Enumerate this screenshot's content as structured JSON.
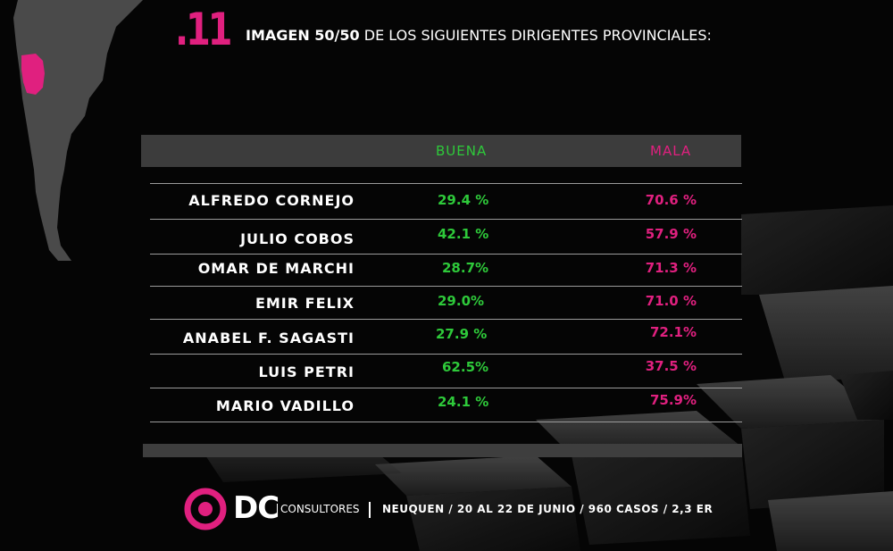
{
  "header": {
    "slide_number": ".11",
    "title_bold": "IMAGEN 50/50",
    "title_rest": "DE LOS SIGUIENTES DIRIGENTES PROVINCIALES:"
  },
  "table": {
    "columns": [
      "BUENA",
      "MALA"
    ],
    "rows": [
      {
        "name": "ALFREDO CORNEJO",
        "buena": "29.4 %",
        "mala": "70.6 %"
      },
      {
        "name": "JULIO COBOS",
        "buena": "42.1 %",
        "mala": "57.9 %"
      },
      {
        "name": "OMAR DE MARCHI",
        "buena": "28.7%",
        "mala": "71.3 %"
      },
      {
        "name": "EMIR FELIX",
        "buena": "29.0%",
        "mala": "71.0 %"
      },
      {
        "name": "ANABEL F. SAGASTI",
        "buena": "27.9 %",
        "mala": "72.1%"
      },
      {
        "name": "LUIS PETRI",
        "buena": "62.5%",
        "mala": "37.5 %"
      },
      {
        "name": "MARIO VADILLO",
        "buena": "24.1 %",
        "mala": "75.9%"
      }
    ]
  },
  "footer": {
    "logo": "DC",
    "logo_subtitle": "CONSULTORES",
    "info": "NEUQUEN / 20 AL 22 DE JUNIO / 960 CASOS / 2,3 ER"
  },
  "colors": {
    "accent_pink": "#e0207f",
    "accent_green": "#2ec93a",
    "background": "#050505"
  }
}
